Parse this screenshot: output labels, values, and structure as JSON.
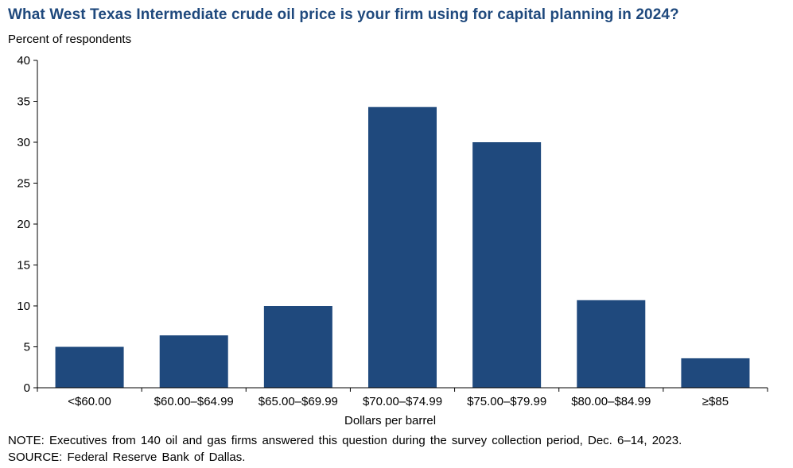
{
  "chart_data": {
    "type": "bar",
    "title": "What West Texas Intermediate crude oil price is your firm using for capital planning in 2024?",
    "ylabel": "Percent of respondents",
    "xlabel": "Dollars per barrel",
    "categories": [
      "<$60.00",
      "$60.00–$64.99",
      "$65.00–$69.99",
      "$70.00–$74.99",
      "$75.00–$79.99",
      "$80.00–$84.99",
      "≥$85"
    ],
    "values": [
      5.0,
      6.4,
      10.0,
      34.3,
      30.0,
      10.7,
      3.6
    ],
    "ylim": [
      0,
      40
    ],
    "yticks": [
      0,
      5,
      10,
      15,
      20,
      25,
      30,
      35,
      40
    ],
    "bar_color": "#1f497d",
    "grid": false,
    "legend": "none"
  },
  "note": "NOTE: Executives from 140 oil and gas firms answered this question during the survey collection period, Dec. 6–14, 2023.",
  "source": "SOURCE: Federal Reserve Bank of Dallas."
}
